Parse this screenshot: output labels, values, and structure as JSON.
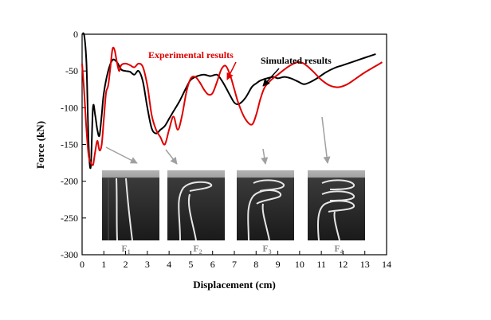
{
  "chart_data": {
    "type": "line",
    "xlabel": "Displacement (cm)",
    "ylabel": "Force (kN)",
    "xlim": [
      0,
      14
    ],
    "ylim": [
      -300,
      0
    ],
    "x_ticks": [
      "0",
      "1",
      "2",
      "3",
      "4",
      "5",
      "6",
      "7",
      "8",
      "9",
      "10",
      "11",
      "12",
      "13",
      "14"
    ],
    "y_ticks": [
      "0",
      "-50",
      "-100",
      "-150",
      "-200",
      "-250",
      "-300"
    ],
    "grid": false,
    "annotations": [
      {
        "text": "Experimental results",
        "color": "#e00000"
      },
      {
        "text": "Simulated results",
        "color": "#000000"
      }
    ],
    "series": [
      {
        "name": "Simulated results",
        "color": "#000000",
        "x": [
          0,
          0.1,
          0.2,
          0.3,
          0.4,
          0.5,
          0.6,
          0.7,
          0.8,
          0.9,
          1.0,
          1.2,
          1.4,
          1.6,
          1.8,
          2.0,
          2.2,
          2.4,
          2.6,
          2.8,
          3.0,
          3.2,
          3.4,
          3.6,
          3.8,
          4.0,
          4.2,
          4.5,
          4.8,
          5.0,
          5.3,
          5.6,
          5.9,
          6.2,
          6.4,
          6.6,
          6.8,
          7.0,
          7.2,
          7.5,
          7.8,
          8.0,
          8.2,
          8.5,
          8.8,
          9.0,
          9.3,
          9.6,
          9.9,
          10.2,
          10.5,
          10.8,
          11.2,
          11.6,
          12.0,
          12.5,
          13.0,
          13.5
        ],
        "y": [
          0,
          -2,
          -40,
          -150,
          -180,
          -100,
          -110,
          -130,
          -138,
          -110,
          -80,
          -50,
          -35,
          -38,
          -48,
          -50,
          -51,
          -55,
          -50,
          -65,
          -100,
          -128,
          -135,
          -130,
          -125,
          -115,
          -105,
          -90,
          -72,
          -62,
          -57,
          -55,
          -57,
          -55,
          -62,
          -72,
          -83,
          -93,
          -95,
          -87,
          -72,
          -67,
          -63,
          -60,
          -58,
          -60,
          -58,
          -60,
          -64,
          -68,
          -65,
          -60,
          -52,
          -46,
          -42,
          -37,
          -32,
          -27
        ]
      },
      {
        "name": "Experimental results",
        "color": "#e00000",
        "x": [
          0,
          0.1,
          0.2,
          0.3,
          0.4,
          0.5,
          0.55,
          0.6,
          0.7,
          0.8,
          0.9,
          1.0,
          1.1,
          1.2,
          1.3,
          1.4,
          1.5,
          1.6,
          1.7,
          1.8,
          2.0,
          2.2,
          2.4,
          2.6,
          2.8,
          3.0,
          3.2,
          3.4,
          3.6,
          3.8,
          4.0,
          4.2,
          4.4,
          4.6,
          4.8,
          5.0,
          5.2,
          5.4,
          5.6,
          5.8,
          6.0,
          6.2,
          6.4,
          6.6,
          6.8,
          7.0,
          7.2,
          7.5,
          7.8,
          8.0,
          8.2,
          8.4,
          8.7,
          9.0,
          9.3,
          9.6,
          9.9,
          10.2,
          10.6,
          11.0,
          11.4,
          11.8,
          12.2,
          12.6,
          13.0,
          13.4,
          13.8
        ],
        "y": [
          -40,
          -80,
          -130,
          -165,
          -175,
          -178,
          -170,
          -160,
          -145,
          -158,
          -150,
          -115,
          -80,
          -70,
          -45,
          -20,
          -22,
          -38,
          -50,
          -42,
          -40,
          -42,
          -45,
          -40,
          -45,
          -70,
          -110,
          -130,
          -140,
          -150,
          -130,
          -112,
          -130,
          -110,
          -78,
          -60,
          -58,
          -65,
          -75,
          -82,
          -80,
          -65,
          -48,
          -43,
          -55,
          -75,
          -95,
          -115,
          -123,
          -110,
          -88,
          -72,
          -62,
          -55,
          -48,
          -42,
          -38,
          -40,
          -50,
          -62,
          -70,
          -72,
          -68,
          -60,
          -52,
          -45,
          -38
        ]
      }
    ],
    "inset_labels": [
      {
        "main": "F",
        "sub": "1"
      },
      {
        "main": "F",
        "sub": "2"
      },
      {
        "main": "F",
        "sub": "3"
      },
      {
        "main": "F",
        "sub": "4"
      }
    ],
    "colors": {
      "simulated": "#000000",
      "experimental": "#e00000",
      "arrow_gray": "#a0a0a0",
      "inset_label": "#8c8c8c"
    }
  }
}
